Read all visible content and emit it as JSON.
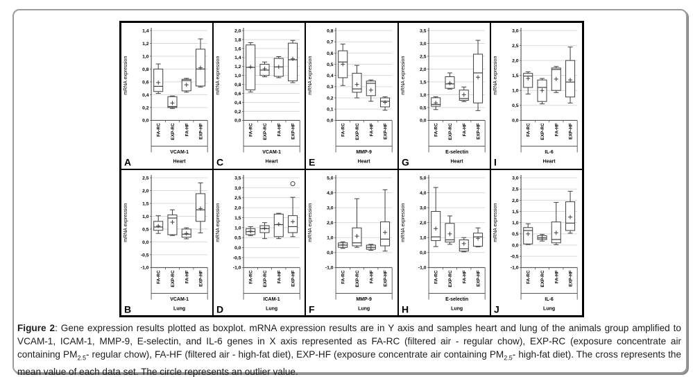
{
  "figure": {
    "ylabel": "mRNA expression",
    "caption": [
      {
        "style": "bold",
        "text": "Figure 2"
      },
      {
        "style": "normal",
        "text": ": Gene expression results plotted as boxplot. mRNA expression results are in Y axis and samples heart and lung of the animals group amplified to VCAM-1, ICAM-1, MMP-9, E-selectin, and IL-6 genes in X axis represented as FA-RC (filtered air - regular chow), EXP-RC (exposure concentrate air containing PM"
      },
      {
        "style": "sub",
        "text": "2.5"
      },
      {
        "style": "normal",
        "text": "- regular chow), FA-HF (filtered air - high-fat diet), EXP-HF (exposure concentrate air containing PM"
      },
      {
        "style": "sub",
        "text": "2.5"
      },
      {
        "style": "normal",
        "text": "- high-fat diet). The cross represents the mean value of each data set. The circle represents an outlier value."
      }
    ],
    "colors": {
      "gridline": "#d9d9d9",
      "axis": "#3f3f3f",
      "box_fill": "#ffffff",
      "frame": "#000000",
      "outer_border": "#9b9b9b"
    }
  },
  "chart_data": [
    {
      "type": "boxplot",
      "panel": "A",
      "gene": "VCAM-1",
      "organ": "Heart",
      "ylim": [
        0,
        1.4
      ],
      "ystep": 0.2,
      "categories": [
        "FA-RC",
        "EXP-RC",
        "FA-HF",
        "EXP-HF"
      ],
      "boxes": [
        {
          "whislo": 0.42,
          "q1": 0.45,
          "med": 0.53,
          "q3": 0.8,
          "whishi": 0.88,
          "mean": 0.59
        },
        {
          "whislo": 0.185,
          "q1": 0.2,
          "med": 0.215,
          "q3": 0.37,
          "whishi": 0.38,
          "mean": 0.27
        },
        {
          "whislo": 0.44,
          "q1": 0.46,
          "med": 0.62,
          "q3": 0.64,
          "whishi": 0.655,
          "mean": 0.555
        },
        {
          "whislo": 0.52,
          "q1": 0.535,
          "med": 0.8,
          "q3": 1.11,
          "whishi": 1.27,
          "mean": 0.82
        }
      ],
      "outliers": []
    },
    {
      "type": "boxplot",
      "panel": "C",
      "gene": "VCAM-1",
      "organ": "Heart",
      "ylim": [
        0,
        2.0
      ],
      "ystep": 0.2,
      "categories": [
        "FA-RC",
        "EXP-RC",
        "FA-HF",
        "EXP-HF"
      ],
      "boxes": [
        {
          "whislo": 0.63,
          "q1": 0.68,
          "med": 1.18,
          "q3": 1.68,
          "whishi": 1.73,
          "mean": 1.19
        },
        {
          "whislo": 0.97,
          "q1": 1.0,
          "med": 1.12,
          "q3": 1.25,
          "whishi": 1.3,
          "mean": 1.15
        },
        {
          "whislo": 0.95,
          "q1": 0.98,
          "med": 1.19,
          "q3": 1.38,
          "whishi": 1.42,
          "mean": 1.19
        },
        {
          "whislo": 0.84,
          "q1": 0.88,
          "med": 1.35,
          "q3": 1.72,
          "whishi": 1.78,
          "mean": 1.37
        }
      ],
      "outliers": []
    },
    {
      "type": "boxplot",
      "panel": "E",
      "gene": "MMP-9",
      "organ": "Heart",
      "ylim": [
        0,
        0.8
      ],
      "ystep": 0.1,
      "categories": [
        "FA-RC",
        "EXP-RC",
        "FA-HF",
        "EXP-HF"
      ],
      "boxes": [
        {
          "whislo": 0.31,
          "q1": 0.38,
          "med": 0.52,
          "q3": 0.62,
          "whishi": 0.68,
          "mean": 0.5
        },
        {
          "whislo": 0.2,
          "q1": 0.25,
          "med": 0.28,
          "q3": 0.42,
          "whishi": 0.49,
          "mean": 0.32
        },
        {
          "whislo": 0.17,
          "q1": 0.22,
          "med": 0.33,
          "q3": 0.35,
          "whishi": 0.36,
          "mean": 0.27
        },
        {
          "whislo": 0.09,
          "q1": 0.12,
          "med": 0.17,
          "q3": 0.2,
          "whishi": 0.21,
          "mean": 0.16
        }
      ],
      "outliers": []
    },
    {
      "type": "boxplot",
      "panel": "G",
      "gene": "E-selectin",
      "organ": "Heart",
      "ylim": [
        0,
        3.5
      ],
      "ystep": 0.5,
      "categories": [
        "FA-RC",
        "EXP-RC",
        "FA-HF",
        "EXP-HF"
      ],
      "boxes": [
        {
          "whislo": 0.42,
          "q1": 0.55,
          "med": 0.62,
          "q3": 0.88,
          "whishi": 0.92,
          "mean": 0.68
        },
        {
          "whislo": 1.22,
          "q1": 1.25,
          "med": 1.42,
          "q3": 1.7,
          "whishi": 1.85,
          "mean": 1.45
        },
        {
          "whislo": 0.73,
          "q1": 0.78,
          "med": 0.85,
          "q3": 1.18,
          "whishi": 1.3,
          "mean": 1.0
        },
        {
          "whislo": 0.38,
          "q1": 0.68,
          "med": 1.85,
          "q3": 2.58,
          "whishi": 3.12,
          "mean": 1.68
        }
      ],
      "outliers": []
    },
    {
      "type": "boxplot",
      "panel": "I",
      "gene": "IL-6",
      "organ": "Heart",
      "ylim": [
        0,
        3.0
      ],
      "ystep": 0.5,
      "categories": [
        "FA-RC",
        "EXP-RC",
        "FA-HF",
        "EXP-HF"
      ],
      "boxes": [
        {
          "whislo": 0.88,
          "q1": 1.1,
          "med": 1.48,
          "q3": 1.57,
          "whishi": 1.62,
          "mean": 1.4
        },
        {
          "whislo": 0.55,
          "q1": 0.63,
          "med": 1.1,
          "q3": 1.35,
          "whishi": 1.4,
          "mean": 1.0
        },
        {
          "whislo": 0.93,
          "q1": 1.0,
          "med": 1.7,
          "q3": 1.75,
          "whishi": 1.8,
          "mean": 1.38
        },
        {
          "whislo": 0.58,
          "q1": 0.78,
          "med": 1.28,
          "q3": 2.0,
          "whishi": 2.45,
          "mean": 1.35
        }
      ],
      "outliers": []
    },
    {
      "type": "boxplot",
      "panel": "B",
      "gene": "VCAM-1",
      "organ": "Lung",
      "ylim": [
        -1.0,
        2.5
      ],
      "ystep": 0.5,
      "categories": [
        "FA-RC",
        "EXP-RC",
        "FA-HF",
        "EXP-HF"
      ],
      "boxes": [
        {
          "whislo": 0.33,
          "q1": 0.45,
          "med": 0.58,
          "q3": 0.8,
          "whishi": 1.02,
          "mean": 0.62
        },
        {
          "whislo": 0.25,
          "q1": 0.28,
          "med": 0.93,
          "q3": 1.05,
          "whishi": 1.25,
          "mean": 0.77
        },
        {
          "whislo": 0.12,
          "q1": 0.18,
          "med": 0.3,
          "q3": 0.5,
          "whishi": 0.55,
          "mean": 0.33
        },
        {
          "whislo": 0.35,
          "q1": 0.8,
          "med": 1.25,
          "q3": 1.88,
          "whishi": 2.3,
          "mean": 1.3
        }
      ],
      "outliers": []
    },
    {
      "type": "boxplot",
      "panel": "D",
      "gene": "ICAM-1",
      "organ": "Lung",
      "ylim": [
        -1.0,
        3.5
      ],
      "ystep": 0.5,
      "categories": [
        "FA-RC",
        "EXP-RC",
        "FA-HF",
        "EXP-HF"
      ],
      "boxes": [
        {
          "whislo": 0.6,
          "q1": 0.65,
          "med": 0.8,
          "q3": 0.95,
          "whishi": 1.05,
          "mean": 0.82
        },
        {
          "whislo": 0.45,
          "q1": 0.75,
          "med": 0.95,
          "q3": 1.1,
          "whishi": 1.25,
          "mean": 0.97
        },
        {
          "whislo": 0.45,
          "q1": 0.55,
          "med": 1.15,
          "q3": 1.68,
          "whishi": 1.72,
          "mean": 1.17
        },
        {
          "whislo": 0.55,
          "q1": 0.75,
          "med": 1.05,
          "q3": 1.6,
          "whishi": 2.52,
          "mean": 1.3
        }
      ],
      "outliers": [
        {
          "category_index": 3,
          "value": 3.2
        }
      ]
    },
    {
      "type": "boxplot",
      "panel": "F",
      "gene": "MMP-9",
      "organ": "Lung",
      "ylim": [
        -1.0,
        5.0
      ],
      "ystep": 1.0,
      "categories": [
        "FA-RC",
        "EXP-RC",
        "FA-HF",
        "EXP-HF"
      ],
      "boxes": [
        {
          "whislo": 0.28,
          "q1": 0.35,
          "med": 0.5,
          "q3": 0.65,
          "whishi": 0.72,
          "mean": 0.52
        },
        {
          "whislo": 0.35,
          "q1": 0.45,
          "med": 0.65,
          "q3": 1.65,
          "whishi": 3.6,
          "mean": 1.1
        },
        {
          "whislo": 0.15,
          "q1": 0.22,
          "med": 0.35,
          "q3": 0.5,
          "whishi": 0.55,
          "mean": 0.35
        },
        {
          "whislo": 0.1,
          "q1": 0.45,
          "med": 0.9,
          "q3": 2.05,
          "whishi": 4.2,
          "mean": 1.35
        }
      ],
      "outliers": []
    },
    {
      "type": "boxplot",
      "panel": "H",
      "gene": "E-selectin",
      "organ": "Lung",
      "ylim": [
        -1.0,
        5.0
      ],
      "ystep": 1.0,
      "categories": [
        "FA-RC",
        "EXP-RC",
        "FA-HF",
        "EXP-HF"
      ],
      "boxes": [
        {
          "whislo": 0.4,
          "q1": 0.8,
          "med": 1.05,
          "q3": 2.75,
          "whishi": 4.35,
          "mean": 1.6
        },
        {
          "whislo": 0.55,
          "q1": 0.7,
          "med": 0.85,
          "q3": 1.95,
          "whishi": 2.45,
          "mean": 1.25
        },
        {
          "whislo": 0.05,
          "q1": 0.1,
          "med": 0.25,
          "q3": 0.85,
          "whishi": 1.0,
          "mean": 0.6
        },
        {
          "whislo": 0.38,
          "q1": 0.42,
          "med": 1.05,
          "q3": 1.3,
          "whishi": 1.65,
          "mean": 0.95
        }
      ],
      "outliers": []
    },
    {
      "type": "boxplot",
      "panel": "J",
      "gene": "IL-6",
      "organ": "Lung",
      "ylim": [
        -1.0,
        3.0
      ],
      "ystep": 0.5,
      "categories": [
        "FA-RC",
        "EXP-RC",
        "FA-HF",
        "EXP-HF"
      ],
      "boxes": [
        {
          "whislo": 0.03,
          "q1": 0.05,
          "med": 0.65,
          "q3": 0.78,
          "whishi": 0.95,
          "mean": 0.5
        },
        {
          "whislo": 0.18,
          "q1": 0.25,
          "med": 0.32,
          "q3": 0.42,
          "whishi": 0.48,
          "mean": 0.33
        },
        {
          "whislo": 0.02,
          "q1": 0.1,
          "med": 0.25,
          "q3": 1.03,
          "whishi": 1.9,
          "mean": 0.55
        },
        {
          "whislo": 0.53,
          "q1": 0.65,
          "med": 0.98,
          "q3": 1.93,
          "whishi": 2.4,
          "mean": 1.25
        }
      ],
      "outliers": []
    }
  ]
}
